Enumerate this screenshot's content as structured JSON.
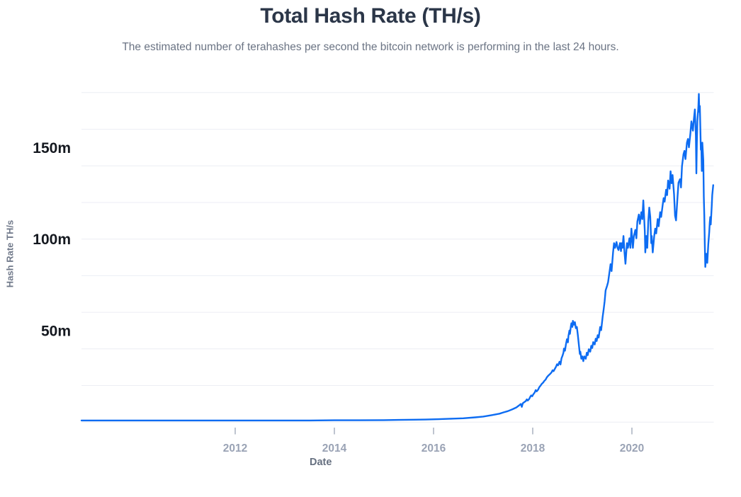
{
  "header": {
    "title": "Total Hash Rate (TH/s)",
    "subtitle": "The estimated number of terahashes per second the bitcoin network is performing in the last 24 hours."
  },
  "colors": {
    "line": "#0d6cf2",
    "title_text": "#2b3648",
    "subtitle_text": "#6b7484",
    "axis_title_text": "#70798a",
    "y_value_label_text": "#14181f",
    "x_tick_label_text": "#9aa3b5",
    "tick_mark": "#a9b0bf",
    "gridline": "#ecEEf4",
    "background": "#ffffff"
  },
  "chart_data": {
    "type": "line",
    "title": "Total Hash Rate (TH/s)",
    "subtitle": "The estimated number of terahashes per second the bitcoin network is performing in the last 24 hours.",
    "xlabel": "Date",
    "ylabel": "Hash Rate TH/s",
    "legend_position": "none",
    "grid": true,
    "xlim": [
      2008.9,
      2021.65
    ],
    "ylim": [
      0,
      182.3
    ],
    "x_ticks": [
      2012,
      2014,
      2016,
      2018,
      2020
    ],
    "x_tick_labels": [
      "2012",
      "2014",
      "2016",
      "2018",
      "2020"
    ],
    "y_tick_values": [
      50,
      100,
      150
    ],
    "y_tick_labels": [
      "50m",
      "100m",
      "150m"
    ],
    "gridline_values": [
      0,
      20,
      40,
      60,
      80,
      100,
      120,
      140,
      160,
      180
    ],
    "unit_suffix": "m",
    "series": [
      {
        "name": "Hash Rate TH/s",
        "points": [
          [
            2008.9,
            0.9
          ],
          [
            2009.5,
            0.9
          ],
          [
            2010.0,
            0.9
          ],
          [
            2010.5,
            0.9
          ],
          [
            2011.0,
            0.9
          ],
          [
            2011.5,
            0.9
          ],
          [
            2012.0,
            0.9
          ],
          [
            2012.5,
            0.9
          ],
          [
            2013.0,
            0.9
          ],
          [
            2013.5,
            0.9
          ],
          [
            2014.0,
            1.0
          ],
          [
            2014.5,
            1.0
          ],
          [
            2015.0,
            1.1
          ],
          [
            2015.3,
            1.2
          ],
          [
            2015.6,
            1.3
          ],
          [
            2015.84,
            1.4
          ],
          [
            2016.1,
            1.6
          ],
          [
            2016.4,
            1.9
          ],
          [
            2016.6,
            2.1
          ],
          [
            2016.84,
            2.6
          ],
          [
            2017.0,
            3.0
          ],
          [
            2017.17,
            3.8
          ],
          [
            2017.33,
            4.6
          ],
          [
            2017.41,
            5.3
          ],
          [
            2017.5,
            6.0
          ],
          [
            2017.59,
            7.0
          ],
          [
            2017.67,
            8.0
          ],
          [
            2017.72,
            9.0
          ],
          [
            2017.76,
            9.9
          ],
          [
            2017.78,
            8.3
          ],
          [
            2017.8,
            10.3
          ],
          [
            2017.83,
            10.9
          ],
          [
            2017.86,
            11.5
          ],
          [
            2017.88,
            12.4
          ],
          [
            2017.9,
            11.8
          ],
          [
            2017.93,
            12.7
          ],
          [
            2017.95,
            13.8
          ],
          [
            2017.97,
            14.6
          ],
          [
            2017.99,
            14.1
          ],
          [
            2018.01,
            15.1
          ],
          [
            2018.04,
            16.2
          ],
          [
            2018.06,
            17.5
          ],
          [
            2018.08,
            16.8
          ],
          [
            2018.11,
            17.8
          ],
          [
            2018.13,
            19.0
          ],
          [
            2018.16,
            20.0
          ],
          [
            2018.18,
            20.8
          ],
          [
            2018.21,
            21.6
          ],
          [
            2018.23,
            22.4
          ],
          [
            2018.26,
            23.2
          ],
          [
            2018.28,
            24.2
          ],
          [
            2018.3,
            25.0
          ],
          [
            2018.33,
            25.8
          ],
          [
            2018.35,
            26.3
          ],
          [
            2018.38,
            27.2
          ],
          [
            2018.4,
            28.3
          ],
          [
            2018.42,
            27.8
          ],
          [
            2018.45,
            29.3
          ],
          [
            2018.47,
            30.3
          ],
          [
            2018.49,
            31.6
          ],
          [
            2018.51,
            31.0
          ],
          [
            2018.54,
            33.0
          ],
          [
            2018.56,
            31.5
          ],
          [
            2018.58,
            34.8
          ],
          [
            2018.6,
            36.2
          ],
          [
            2018.62,
            38.0
          ],
          [
            2018.63,
            40.2
          ],
          [
            2018.65,
            39.0
          ],
          [
            2018.67,
            42.5
          ],
          [
            2018.69,
            45.3
          ],
          [
            2018.71,
            43.6
          ],
          [
            2018.72,
            47.0
          ],
          [
            2018.74,
            50.0
          ],
          [
            2018.75,
            48.2
          ],
          [
            2018.77,
            52.5
          ],
          [
            2018.78,
            54.0
          ],
          [
            2018.8,
            52.0
          ],
          [
            2018.81,
            55.3
          ],
          [
            2018.83,
            53.2
          ],
          [
            2018.85,
            54.6
          ],
          [
            2018.87,
            51.3
          ],
          [
            2018.89,
            52.0
          ],
          [
            2018.91,
            47.5
          ],
          [
            2018.93,
            42.3
          ],
          [
            2018.95,
            37.2
          ],
          [
            2018.96,
            38.5
          ],
          [
            2018.98,
            34.6
          ],
          [
            2019.0,
            35.9
          ],
          [
            2019.02,
            33.3
          ],
          [
            2019.04,
            35.9
          ],
          [
            2019.07,
            34.6
          ],
          [
            2019.09,
            37.9
          ],
          [
            2019.11,
            36.6
          ],
          [
            2019.13,
            39.8
          ],
          [
            2019.16,
            38.5
          ],
          [
            2019.18,
            41.7
          ],
          [
            2019.2,
            40.5
          ],
          [
            2019.22,
            43.7
          ],
          [
            2019.25,
            42.4
          ],
          [
            2019.27,
            45.6
          ],
          [
            2019.29,
            44.3
          ],
          [
            2019.31,
            47.5
          ],
          [
            2019.33,
            46.2
          ],
          [
            2019.36,
            52.0
          ],
          [
            2019.38,
            50.2
          ],
          [
            2019.41,
            57.5
          ],
          [
            2019.43,
            61.5
          ],
          [
            2019.45,
            66.0
          ],
          [
            2019.47,
            72.0
          ],
          [
            2019.5,
            74.5
          ],
          [
            2019.52,
            76.5
          ],
          [
            2019.55,
            82.4
          ],
          [
            2019.57,
            86.3
          ],
          [
            2019.59,
            82.5
          ],
          [
            2019.62,
            92.7
          ],
          [
            2019.64,
            97.8
          ],
          [
            2019.66,
            95.2
          ],
          [
            2019.69,
            98.4
          ],
          [
            2019.71,
            95.2
          ],
          [
            2019.73,
            94.0
          ],
          [
            2019.76,
            97.8
          ],
          [
            2019.78,
            93.4
          ],
          [
            2019.79,
            97.8
          ],
          [
            2019.81,
            95.2
          ],
          [
            2019.83,
            101.7
          ],
          [
            2019.85,
            93.0
          ],
          [
            2019.87,
            86.5
          ],
          [
            2019.9,
            97.8
          ],
          [
            2019.92,
            95.2
          ],
          [
            2019.95,
            100.4
          ],
          [
            2019.97,
            95.2
          ],
          [
            2019.99,
            105.7
          ],
          [
            2020.02,
            95.2
          ],
          [
            2020.04,
            101.7
          ],
          [
            2020.07,
            105.0
          ],
          [
            2020.09,
            100.4
          ],
          [
            2020.11,
            109.6
          ],
          [
            2020.14,
            113.4
          ],
          [
            2020.16,
            108.3
          ],
          [
            2020.19,
            114.7
          ],
          [
            2020.21,
            110.9
          ],
          [
            2020.23,
            121.1
          ],
          [
            2020.26,
            104.4
          ],
          [
            2020.27,
            92.7
          ],
          [
            2020.29,
            101.7
          ],
          [
            2020.31,
            95.2
          ],
          [
            2020.33,
            109.6
          ],
          [
            2020.35,
            117.2
          ],
          [
            2020.37,
            112.1
          ],
          [
            2020.39,
            97.8
          ],
          [
            2020.4,
            101.7
          ],
          [
            2020.42,
            92.7
          ],
          [
            2020.45,
            101.7
          ],
          [
            2020.47,
            105.7
          ],
          [
            2020.49,
            103.1
          ],
          [
            2020.52,
            110.9
          ],
          [
            2020.54,
            107.0
          ],
          [
            2020.57,
            114.7
          ],
          [
            2020.59,
            112.1
          ],
          [
            2020.62,
            118.5
          ],
          [
            2020.64,
            122.4
          ],
          [
            2020.66,
            120.4
          ],
          [
            2020.69,
            127.0
          ],
          [
            2020.71,
            124.0
          ],
          [
            2020.73,
            132.0
          ],
          [
            2020.76,
            127.5
          ],
          [
            2020.78,
            137.0
          ],
          [
            2020.8,
            130.5
          ],
          [
            2020.82,
            135.0
          ],
          [
            2020.85,
            124.4
          ],
          [
            2020.87,
            112.8
          ],
          [
            2020.89,
            110.2
          ],
          [
            2020.92,
            123.1
          ],
          [
            2020.94,
            130.8
          ],
          [
            2020.97,
            132.7
          ],
          [
            2020.99,
            128.2
          ],
          [
            2021.01,
            139.8
          ],
          [
            2021.04,
            146.3
          ],
          [
            2021.06,
            148.2
          ],
          [
            2021.08,
            143.7
          ],
          [
            2021.11,
            152.7
          ],
          [
            2021.13,
            154.7
          ],
          [
            2021.15,
            150.1
          ],
          [
            2021.18,
            157.9
          ],
          [
            2021.2,
            164.3
          ],
          [
            2021.23,
            159.2
          ],
          [
            2021.25,
            165.6
          ],
          [
            2021.27,
            170.8
          ],
          [
            2021.29,
            156.6
          ],
          [
            2021.3,
            135.9
          ],
          [
            2021.31,
            152.7
          ],
          [
            2021.32,
            164.3
          ],
          [
            2021.34,
            172.0
          ],
          [
            2021.35,
            179.3
          ],
          [
            2021.36,
            169.5
          ],
          [
            2021.37,
            172.7
          ],
          [
            2021.39,
            148.8
          ],
          [
            2021.4,
            150.8
          ],
          [
            2021.41,
            137.2
          ],
          [
            2021.42,
            152.7
          ],
          [
            2021.44,
            143.0
          ],
          [
            2021.45,
            123.1
          ],
          [
            2021.46,
            112.8
          ],
          [
            2021.47,
            97.3
          ],
          [
            2021.48,
            84.8
          ],
          [
            2021.5,
            92.0
          ],
          [
            2021.52,
            87.0
          ],
          [
            2021.54,
            97.0
          ],
          [
            2021.56,
            104.0
          ],
          [
            2021.57,
            109.0
          ],
          [
            2021.58,
            112.0
          ],
          [
            2021.59,
            108.0
          ],
          [
            2021.61,
            118.0
          ],
          [
            2021.62,
            124.0
          ],
          [
            2021.64,
            129.5
          ]
        ]
      }
    ]
  }
}
